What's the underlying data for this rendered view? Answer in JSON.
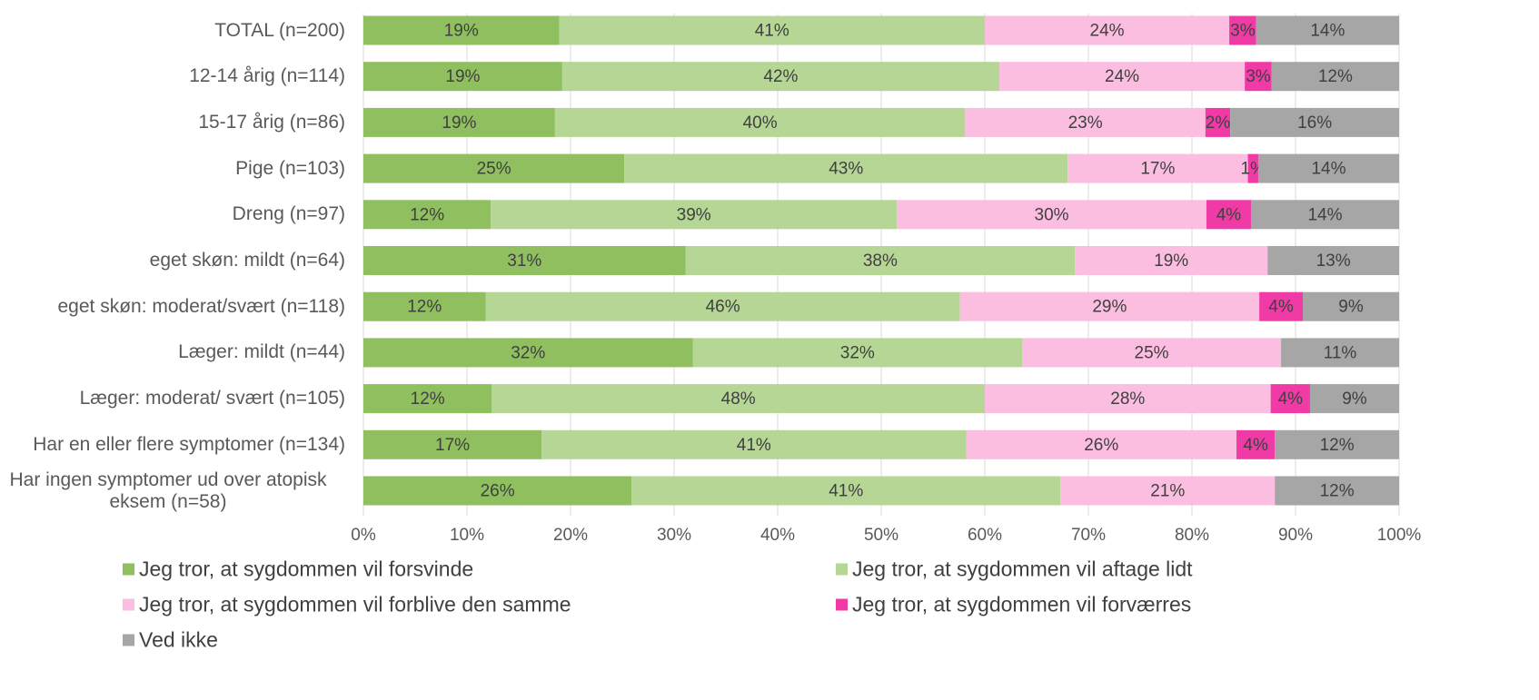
{
  "chart_data": {
    "type": "stacked-bar-horizontal",
    "categories": [
      "TOTAL (n=200)",
      "12-14 årig (n=114)",
      "15-17 årig (n=86)",
      "Pige (n=103)",
      "Dreng (n=97)",
      "eget skøn: mildt (n=64)",
      "eget skøn: moderat/svært (n=118)",
      "Læger: mildt (n=44)",
      "Læger: moderat/ svært (n=105)",
      "Har en eller flere symptomer (n=134)",
      "Har ingen symptomer ud over atopisk\neksem (n=58)"
    ],
    "series": [
      {
        "name": "Jeg tror, at sygdommen vil forsvinde",
        "color": "#8fbf5f",
        "values": [
          18.9,
          19.2,
          18.5,
          25.2,
          12.3,
          31.1,
          11.8,
          31.8,
          12.4,
          17.2,
          25.9
        ],
        "value_labels": [
          "19%",
          "19%",
          "19%",
          "25%",
          "12%",
          "31%",
          "12%",
          "32%",
          "12%",
          "17%",
          "26%"
        ]
      },
      {
        "name": "Jeg tror, at sygdommen vil aftage lidt",
        "color": "#b5d695",
        "values": [
          41.1,
          42.2,
          39.6,
          42.8,
          39.2,
          37.6,
          45.8,
          31.8,
          47.6,
          41.0,
          41.4
        ],
        "value_labels": [
          "41%",
          "42%",
          "40%",
          "43%",
          "39%",
          "38%",
          "46%",
          "32%",
          "48%",
          "41%",
          "41%"
        ]
      },
      {
        "name": "Jeg tror, at sygdommen vil forblive den samme",
        "color": "#fbbde0",
        "values": [
          23.6,
          23.7,
          23.2,
          17.4,
          29.9,
          18.6,
          28.9,
          25.0,
          27.6,
          26.1,
          20.7
        ],
        "value_labels": [
          "24%",
          "24%",
          "23%",
          "17%",
          "30%",
          "19%",
          "29%",
          "25%",
          "28%",
          "26%",
          "21%"
        ]
      },
      {
        "name": "Jeg tror, at sygdommen vil forværres",
        "color": "#f03aa6",
        "values": [
          2.6,
          2.6,
          2.4,
          1.0,
          4.3,
          null,
          4.2,
          null,
          3.8,
          3.7,
          null
        ],
        "value_labels": [
          "3%",
          "3%",
          "2%",
          "1%",
          "4%",
          null,
          "4%",
          null,
          "4%",
          "4%",
          null
        ]
      },
      {
        "name": "Ved ikke",
        "color": "#a6a6a6",
        "values": [
          13.8,
          12.3,
          16.3,
          13.6,
          14.3,
          12.7,
          9.3,
          11.4,
          8.6,
          12.0,
          12.0
        ],
        "value_labels": [
          "14%",
          "12%",
          "16%",
          "14%",
          "14%",
          "13%",
          "9%",
          "11%",
          "9%",
          "12%",
          "12%"
        ]
      }
    ],
    "xlim": [
      0,
      100
    ],
    "xticks": [
      {
        "value": 0,
        "label": "0%"
      },
      {
        "value": 10,
        "label": "10%"
      },
      {
        "value": 20,
        "label": "20%"
      },
      {
        "value": 30,
        "label": "30%"
      },
      {
        "value": 40,
        "label": "40%"
      },
      {
        "value": 50,
        "label": "50%"
      },
      {
        "value": 60,
        "label": "60%"
      },
      {
        "value": 70,
        "label": "70%"
      },
      {
        "value": 80,
        "label": "80%"
      },
      {
        "value": 90,
        "label": "90%"
      },
      {
        "value": 100,
        "label": "100%"
      }
    ],
    "grid": true
  }
}
